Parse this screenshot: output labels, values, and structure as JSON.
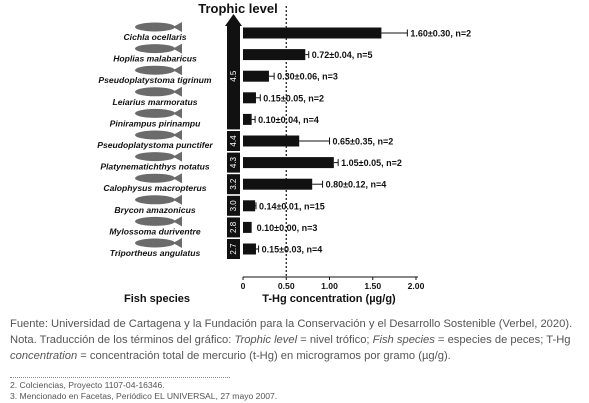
{
  "chart_data": {
    "type": "bar",
    "orientation": "horizontal",
    "title": "Trophic level",
    "xlabel": "T-Hg concentration (µg/g)",
    "ylabel": "Fish species",
    "xlim": [
      0,
      2.0
    ],
    "xticks": [
      "0",
      "0.50",
      "1.00",
      "1.50",
      "2.00"
    ],
    "reference_line": 0.5,
    "categories": [
      "Cichla ocellaris",
      "Hoplias malabaricus",
      "Pseudoplatystoma tigrinum",
      "Leiarius marmoratus",
      "Pinirampus pirinampu",
      "Pseudoplatystoma punctifer",
      "Platynematichthys notatus",
      "Calophysus macropterus",
      "Brycon amazonicus",
      "Mylossoma duriventre",
      "Triportheus angulatus"
    ],
    "values": [
      1.6,
      0.72,
      0.3,
      0.15,
      0.1,
      0.65,
      1.05,
      0.8,
      0.14,
      0.1,
      0.15
    ],
    "errors": [
      0.3,
      0.04,
      0.06,
      0.05,
      0.04,
      0.35,
      0.05,
      0.12,
      0.01,
      0.0,
      0.03
    ],
    "data_labels": [
      "1.60±0.30, n=2",
      "0.72±0.04, n=5",
      "0.30±0.06, n=3",
      "0.15±0.05, n=2",
      "0.10±0.04, n=4",
      "0.65±0.35, n=2",
      "1.05±0.05, n=2",
      "0.80±0.12, n=4",
      "0.14±0.01, n=15",
      "0.10±0.00, n=3",
      "0.15±0.03, n=4"
    ],
    "trophic_groups": [
      {
        "label": "4.5",
        "from": 0,
        "to": 4
      },
      {
        "label": "4.4",
        "from": 5,
        "to": 5
      },
      {
        "label": "4.3",
        "from": 6,
        "to": 6
      },
      {
        "label": "3.2",
        "from": 7,
        "to": 7
      },
      {
        "label": "3.0",
        "from": 8,
        "to": 8
      },
      {
        "label": "2.8",
        "from": 9,
        "to": 9
      },
      {
        "label": "2.7",
        "from": 10,
        "to": 10
      }
    ],
    "colors": {
      "bar": "#111111",
      "fish": "#6b6b6b",
      "axis": "#111111"
    }
  },
  "source": {
    "line1": "Fuente: Universidad de Cartagena y la Fundación para la Conservación y el Desarrollo Sostenible (Verbel, 2020).",
    "note_prefix": "Nota. Traducción de los términos del gráfico: ",
    "term1": "Trophic level",
    "def1": " = nivel trófico; ",
    "term2": "Fish species",
    "def2": " = especies de peces; T-Hg ",
    "term3": "concentration",
    "def3": " = concentración total de mercurio (t-Hg) en microgramos por gramo (µg/g)."
  },
  "footnotes": [
    "2. Colciencias, Proyecto 1107-04-16346.",
    "3. Mencionado en Facetas, Periódico EL UNIVERSAL, 27 mayo 2007."
  ]
}
